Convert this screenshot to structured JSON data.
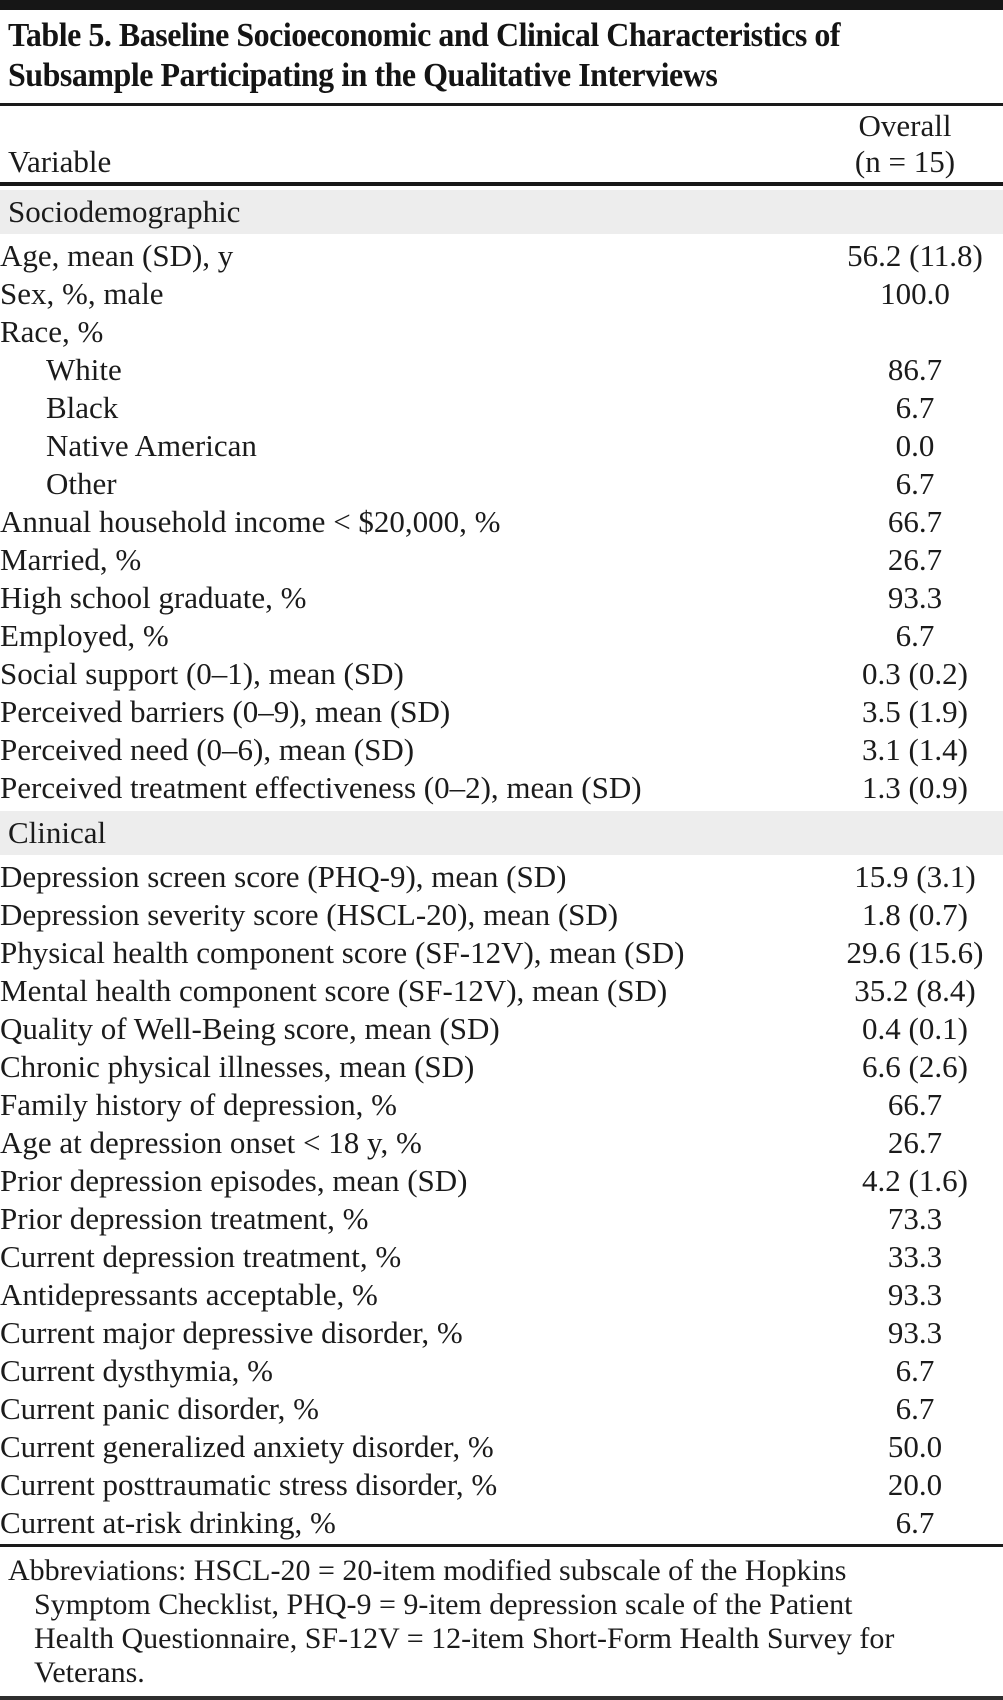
{
  "title": {
    "lines": [
      "Table 5. Baseline Socioeconomic and Clinical Characteristics of",
      "Subsample Participating in the Qualitative Interviews"
    ]
  },
  "table": {
    "column_headers": {
      "variable": "Variable",
      "overall_lines": [
        "Overall",
        "(n = 15)"
      ]
    },
    "sections": [
      {
        "header": "Sociodemographic",
        "rows": [
          {
            "label": "Age, mean (SD), y",
            "value": "56.2 (11.8)",
            "indent": false
          },
          {
            "label": "Sex, %, male",
            "value": "100.0",
            "indent": false
          },
          {
            "label": "Race, %",
            "value": "",
            "indent": false
          },
          {
            "label": "White",
            "value": "86.7",
            "indent": true
          },
          {
            "label": "Black",
            "value": "6.7",
            "indent": true
          },
          {
            "label": "Native American",
            "value": "0.0",
            "indent": true
          },
          {
            "label": "Other",
            "value": "6.7",
            "indent": true
          },
          {
            "label": "Annual household income < $20,000, %",
            "value": "66.7",
            "indent": false
          },
          {
            "label": "Married, %",
            "value": "26.7",
            "indent": false
          },
          {
            "label": "High school graduate, %",
            "value": "93.3",
            "indent": false
          },
          {
            "label": "Employed, %",
            "value": "6.7",
            "indent": false
          },
          {
            "label": "Social support (0–1), mean (SD)",
            "value": "0.3 (0.2)",
            "indent": false
          },
          {
            "label": "Perceived barriers (0–9), mean (SD)",
            "value": "3.5 (1.9)",
            "indent": false
          },
          {
            "label": "Perceived need (0–6), mean (SD)",
            "value": "3.1 (1.4)",
            "indent": false
          },
          {
            "label": "Perceived treatment effectiveness (0–2), mean (SD)",
            "value": "1.3 (0.9)",
            "indent": false
          }
        ]
      },
      {
        "header": "Clinical",
        "rows": [
          {
            "label": "Depression screen score (PHQ-9), mean (SD)",
            "value": "15.9 (3.1)",
            "indent": false
          },
          {
            "label": "Depression severity score (HSCL-20), mean (SD)",
            "value": "1.8 (0.7)",
            "indent": false
          },
          {
            "label": "Physical health component score (SF-12V), mean (SD)",
            "value": "29.6 (15.6)",
            "indent": false
          },
          {
            "label": "Mental health component score (SF-12V), mean (SD)",
            "value": "35.2 (8.4)",
            "indent": false
          },
          {
            "label": "Quality of Well-Being score, mean (SD)",
            "value": "0.4 (0.1)",
            "indent": false
          },
          {
            "label": "Chronic physical illnesses, mean (SD)",
            "value": "6.6 (2.6)",
            "indent": false
          },
          {
            "label": "Family history of depression, %",
            "value": "66.7",
            "indent": false
          },
          {
            "label": "Age at depression onset < 18 y, %",
            "value": "26.7",
            "indent": false
          },
          {
            "label": "Prior depression episodes, mean (SD)",
            "value": "4.2 (1.6)",
            "indent": false
          },
          {
            "label": "Prior depression treatment, %",
            "value": "73.3",
            "indent": false
          },
          {
            "label": "Current depression treatment, %",
            "value": "33.3",
            "indent": false
          },
          {
            "label": "Antidepressants acceptable, %",
            "value": "93.3",
            "indent": false
          },
          {
            "label": "Current major depressive disorder, %",
            "value": "93.3",
            "indent": false
          },
          {
            "label": "Current dysthymia, %",
            "value": "6.7",
            "indent": false
          },
          {
            "label": "Current panic disorder, %",
            "value": "6.7",
            "indent": false
          },
          {
            "label": "Current generalized anxiety disorder, %",
            "value": "50.0",
            "indent": false
          },
          {
            "label": "Current posttraumatic stress disorder, %",
            "value": "20.0",
            "indent": false
          },
          {
            "label": "Current at-risk drinking, %",
            "value": "6.7",
            "indent": false
          }
        ]
      }
    ]
  },
  "footnote": {
    "lines": [
      "Abbreviations: HSCL-20 = 20-item modified subscale of the Hopkins",
      "Symptom Checklist, PHQ-9 = 9-item depression scale of the Patient",
      "Health Questionnaire, SF-12V = 12-item Short-Form Health Survey for",
      "Veterans."
    ]
  },
  "colors": {
    "text": "#1b1b1b",
    "rule": "#1a1a1a",
    "top_bar": "#161616",
    "section_band_bg": "#ededed"
  }
}
